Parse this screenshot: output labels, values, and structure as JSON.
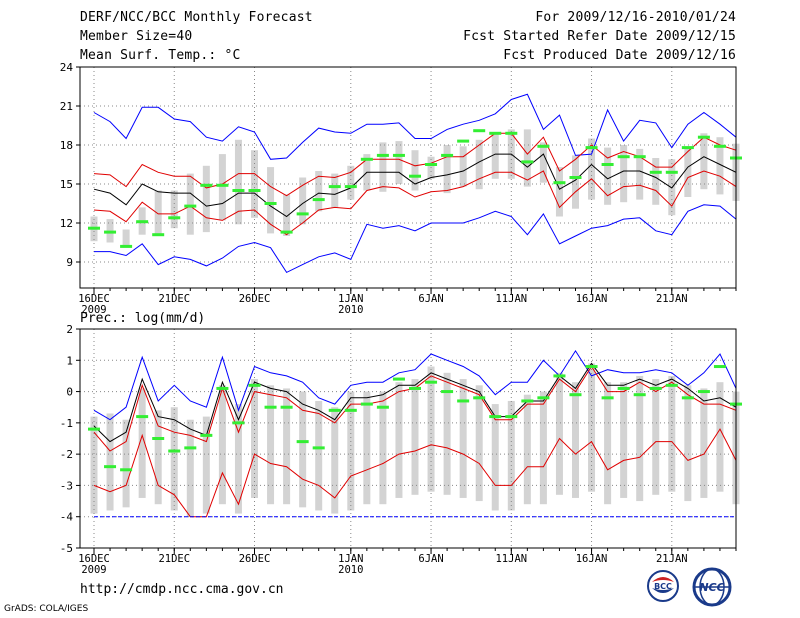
{
  "header": {
    "title": "DERF/NCC/BCC Monthly Forecast",
    "member_size": "Member Size=40",
    "variable": "Mean Surf. Temp.: °C",
    "period": "For 2009/12/16-2010/01/24",
    "start_date": "Fcst Started Refer Date 2009/12/15",
    "produced_date": "Fcst Produced Date 2009/12/16"
  },
  "footer": {
    "url": "http://cmdp.ncc.cma.gov.cn",
    "credit": "GrADS: COLA/IGES",
    "logo_bcc": "BCC",
    "logo_ncc": "NCC"
  },
  "colors": {
    "outer_line": "#0000ff",
    "inner_line": "#e00000",
    "mean_line": "#000000",
    "box": "#d3d3d3",
    "green_marker": "#33ee33",
    "grid": "#888888"
  },
  "chart_data": [
    {
      "type": "box-line",
      "title": "Mean Surf. Temp.: °C",
      "ylim": [
        7,
        24
      ],
      "yticks": [
        9,
        12,
        15,
        18,
        21,
        24
      ],
      "x_tick_labels": [
        {
          "day": 1,
          "label": "16DEC",
          "sub": "2009"
        },
        {
          "day": 6,
          "label": "21DEC",
          "sub": ""
        },
        {
          "day": 11,
          "label": "26DEC",
          "sub": ""
        },
        {
          "day": 17,
          "label": "1JAN",
          "sub": "2010"
        },
        {
          "day": 22,
          "label": "6JAN",
          "sub": ""
        },
        {
          "day": 27,
          "label": "11JAN",
          "sub": ""
        },
        {
          "day": 32,
          "label": "16JAN",
          "sub": ""
        },
        {
          "day": 37,
          "label": "21JAN",
          "sub": ""
        }
      ],
      "days": 40,
      "grid": true,
      "series": [
        {
          "name": "max",
          "color": "blue",
          "values": [
            20.5,
            19.8,
            18.5,
            20.9,
            20.9,
            20.0,
            19.8,
            18.6,
            18.3,
            19.4,
            19.0,
            16.9,
            17.0,
            18.2,
            19.3,
            19.0,
            18.9,
            19.6,
            19.6,
            19.7,
            18.5,
            18.5,
            19.2,
            19.6,
            19.9,
            20.4,
            21.5,
            21.9,
            19.2,
            20.3,
            17.2,
            17.3,
            20.7,
            18.3,
            19.9,
            19.7,
            17.8,
            19.6,
            20.5,
            19.6,
            18.6
          ]
        },
        {
          "name": "p90",
          "color": "red",
          "values": [
            15.8,
            15.7,
            14.8,
            16.5,
            15.9,
            15.6,
            15.6,
            14.7,
            15.0,
            15.8,
            15.8,
            14.8,
            14.1,
            14.9,
            15.6,
            15.5,
            15.9,
            16.9,
            16.9,
            16.9,
            16.4,
            16.6,
            17.1,
            17.1,
            18.0,
            18.9,
            18.9,
            17.3,
            18.6,
            16.0,
            16.9,
            18.0,
            17.0,
            17.5,
            17.1,
            16.3,
            16.3,
            17.5,
            18.6,
            18.0,
            17.6
          ]
        },
        {
          "name": "mean",
          "color": "black",
          "values": [
            14.6,
            14.3,
            13.4,
            15.0,
            14.4,
            14.3,
            14.3,
            13.3,
            13.5,
            14.3,
            14.3,
            13.3,
            12.5,
            13.5,
            14.3,
            14.2,
            14.7,
            15.9,
            15.9,
            15.9,
            15.0,
            15.5,
            15.7,
            16.0,
            16.7,
            17.3,
            17.3,
            16.3,
            17.3,
            14.6,
            15.3,
            16.5,
            15.4,
            16.0,
            16.0,
            15.5,
            14.7,
            16.3,
            17.1,
            16.5,
            15.9
          ]
        },
        {
          "name": "p10",
          "color": "red",
          "values": [
            13.0,
            12.9,
            12.1,
            13.6,
            12.7,
            12.7,
            13.3,
            12.4,
            12.2,
            12.9,
            13.0,
            11.9,
            11.1,
            12.0,
            13.0,
            13.2,
            13.1,
            14.5,
            14.8,
            14.7,
            14.0,
            14.4,
            14.5,
            14.8,
            15.4,
            15.9,
            15.9,
            15.3,
            16.0,
            13.2,
            14.4,
            15.4,
            14.1,
            14.8,
            14.9,
            14.5,
            13.3,
            15.5,
            16.0,
            15.6,
            14.8
          ]
        },
        {
          "name": "min",
          "color": "blue",
          "values": [
            9.8,
            9.8,
            9.5,
            10.4,
            8.8,
            9.4,
            9.2,
            8.7,
            9.3,
            10.2,
            10.5,
            10.1,
            8.2,
            8.8,
            9.4,
            9.7,
            9.2,
            11.9,
            11.6,
            11.8,
            11.4,
            12.0,
            12.0,
            12.0,
            12.4,
            12.9,
            12.5,
            11.1,
            12.7,
            10.4,
            11.0,
            11.6,
            11.8,
            12.3,
            12.4,
            11.4,
            11.1,
            12.9,
            13.4,
            13.3,
            12.3
          ]
        }
      ],
      "boxes": {
        "upper": [
          12.5,
          12.3,
          11.5,
          13.2,
          14.5,
          14.5,
          15.8,
          16.4,
          17.3,
          18.4,
          17.6,
          16.3,
          14.2,
          15.5,
          16.0,
          15.8,
          16.4,
          17.3,
          18.2,
          18.3,
          17.6,
          17.1,
          18.0,
          17.9,
          18.4,
          19.0,
          19.2,
          19.2,
          18.2,
          16.3,
          17.2,
          18.5,
          17.8,
          18.0,
          17.7,
          17.0,
          16.9,
          17.8,
          18.9,
          18.6,
          18.1
        ],
        "lower": [
          10.6,
          10.5,
          10.1,
          11.1,
          11.1,
          11.6,
          11.1,
          11.3,
          12.2,
          11.9,
          12.4,
          11.2,
          11.0,
          11.9,
          12.9,
          13.2,
          13.8,
          14.5,
          14.4,
          15.0,
          14.5,
          15.4,
          14.3,
          14.8,
          14.6,
          15.4,
          15.4,
          14.8,
          15.1,
          12.5,
          13.1,
          13.8,
          13.4,
          13.6,
          13.8,
          13.4,
          12.6,
          14.0,
          14.6,
          14.2,
          13.7
        ]
      },
      "markers": [
        11.6,
        11.3,
        10.2,
        12.1,
        11.1,
        12.4,
        13.3,
        14.9,
        14.9,
        14.5,
        14.5,
        13.5,
        11.3,
        12.7,
        13.8,
        14.8,
        14.8,
        16.9,
        17.2,
        17.2,
        15.6,
        16.5,
        17.2,
        18.3,
        19.1,
        18.9,
        18.9,
        16.7,
        17.9,
        15.1,
        15.5,
        17.8,
        16.5,
        17.1,
        17.1,
        15.9,
        15.9,
        17.8,
        18.6,
        17.9,
        17.0
      ]
    },
    {
      "type": "box-line",
      "title": "Prec.: log(mm/d)",
      "ylim": [
        -5,
        2
      ],
      "yticks": [
        -5,
        -4,
        -3,
        -2,
        -1,
        0,
        1,
        2
      ],
      "x_tick_labels": [
        {
          "day": 1,
          "label": "16DEC",
          "sub": "2009"
        },
        {
          "day": 6,
          "label": "21DEC",
          "sub": ""
        },
        {
          "day": 11,
          "label": "26DEC",
          "sub": ""
        },
        {
          "day": 17,
          "label": "1JAN",
          "sub": "2010"
        },
        {
          "day": 22,
          "label": "6JAN",
          "sub": ""
        },
        {
          "day": 27,
          "label": "11JAN",
          "sub": ""
        },
        {
          "day": 32,
          "label": "16JAN",
          "sub": ""
        },
        {
          "day": 37,
          "label": "21JAN",
          "sub": ""
        }
      ],
      "days": 40,
      "grid": true,
      "series": [
        {
          "name": "max",
          "color": "blue",
          "values": [
            -0.6,
            -0.9,
            -0.5,
            1.1,
            -0.3,
            0.2,
            -0.3,
            -0.5,
            1.1,
            -0.6,
            0.8,
            0.6,
            0.5,
            0.3,
            -0.2,
            -0.4,
            0.2,
            0.3,
            0.3,
            0.6,
            0.7,
            1.2,
            1.0,
            0.8,
            0.5,
            -0.1,
            0.3,
            0.3,
            1.0,
            0.5,
            1.3,
            0.5,
            0.7,
            0.6,
            0.6,
            0.7,
            0.6,
            0.2,
            0.6,
            1.2,
            0.1
          ]
        },
        {
          "name": "mean",
          "color": "black",
          "values": [
            -1.1,
            -1.6,
            -1.3,
            0.4,
            -0.8,
            -0.9,
            -1.2,
            -1.4,
            0.3,
            -0.9,
            0.3,
            0.1,
            0.0,
            -0.4,
            -0.6,
            -0.9,
            -0.2,
            -0.2,
            -0.1,
            0.2,
            0.2,
            0.6,
            0.4,
            0.2,
            0.0,
            -0.8,
            -0.8,
            -0.3,
            -0.3,
            0.5,
            0.1,
            0.9,
            0.2,
            0.2,
            0.4,
            0.2,
            0.4,
            0.1,
            -0.3,
            -0.2,
            -0.5
          ]
        },
        {
          "name": "p75",
          "color": "red",
          "values": [
            -1.3,
            -1.9,
            -1.6,
            0.2,
            -1.1,
            -1.3,
            -1.4,
            -1.6,
            0.1,
            -1.3,
            0.0,
            -0.1,
            -0.2,
            -0.6,
            -0.7,
            -1.0,
            -0.4,
            -0.4,
            -0.3,
            0.0,
            0.1,
            0.5,
            0.3,
            0.1,
            -0.1,
            -0.9,
            -0.9,
            -0.4,
            -0.4,
            0.4,
            0.0,
            0.8,
            0.0,
            0.0,
            0.3,
            0.0,
            0.3,
            -0.1,
            -0.4,
            -0.4,
            -0.6
          ]
        },
        {
          "name": "p25",
          "color": "red",
          "values": [
            -3.0,
            -3.2,
            -3.0,
            -1.4,
            -3.0,
            -3.3,
            -4.0,
            -4.0,
            -2.6,
            -3.6,
            -2.0,
            -2.3,
            -2.4,
            -2.8,
            -3.0,
            -3.4,
            -2.7,
            -2.5,
            -2.3,
            -2.0,
            -1.9,
            -1.7,
            -1.8,
            -2.0,
            -2.3,
            -3.0,
            -3.0,
            -2.4,
            -2.4,
            -1.5,
            -2.0,
            -1.6,
            -2.5,
            -2.2,
            -2.1,
            -1.6,
            -1.6,
            -2.2,
            -2.0,
            -1.2,
            -2.2
          ]
        },
        {
          "name": "min",
          "color": "blue",
          "values": [
            -4.0,
            -4.0,
            -4.0,
            -4.0,
            -4.0,
            -4.0,
            -4.0,
            -4.0,
            -4.0,
            -4.0,
            -4.0,
            -4.0,
            -4.0,
            -4.0,
            -4.0,
            -4.0,
            -4.0,
            -4.0,
            -4.0,
            -4.0,
            -4.0,
            -4.0,
            -4.0,
            -4.0,
            -4.0,
            -4.0,
            -4.0,
            -4.0,
            -4.0,
            -4.0,
            -4.0,
            -4.0,
            -4.0,
            -4.0,
            -4.0,
            -4.0,
            -4.0,
            -4.0,
            -4.0,
            -4.0,
            -4.0
          ]
        }
      ],
      "boxes": {
        "upper": [
          -0.8,
          -0.7,
          -0.9,
          0.1,
          -0.6,
          -0.5,
          -0.9,
          -0.8,
          0.2,
          -0.4,
          0.4,
          0.2,
          0.1,
          0.0,
          -0.3,
          -0.5,
          0.0,
          0.0,
          0.0,
          0.3,
          0.4,
          0.8,
          0.6,
          0.4,
          0.2,
          -0.4,
          -0.3,
          -0.1,
          0.0,
          0.6,
          0.3,
          0.9,
          0.3,
          0.3,
          0.5,
          0.4,
          0.5,
          0.2,
          0.1,
          0.3,
          0.0
        ],
        "lower": [
          -3.9,
          -3.8,
          -3.7,
          -3.4,
          -3.6,
          -3.8,
          -4.0,
          -3.9,
          -3.6,
          -3.9,
          -3.4,
          -3.6,
          -3.6,
          -3.7,
          -3.8,
          -3.9,
          -3.8,
          -3.6,
          -3.6,
          -3.4,
          -3.3,
          -3.2,
          -3.3,
          -3.4,
          -3.5,
          -3.8,
          -3.8,
          -3.6,
          -3.6,
          -3.3,
          -3.4,
          -3.2,
          -3.6,
          -3.4,
          -3.5,
          -3.3,
          -3.2,
          -3.5,
          -3.4,
          -3.2,
          -3.6
        ]
      },
      "markers": [
        -1.2,
        -2.4,
        -2.5,
        -0.8,
        -1.5,
        -1.9,
        -1.8,
        -1.4,
        0.1,
        -1.0,
        0.2,
        -0.5,
        -0.5,
        -1.6,
        -1.8,
        -0.6,
        -0.6,
        -0.4,
        -0.5,
        0.4,
        0.1,
        0.3,
        0.0,
        -0.3,
        -0.2,
        -0.8,
        -0.8,
        -0.3,
        -0.2,
        0.5,
        -0.1,
        0.8,
        -0.2,
        0.1,
        -0.1,
        0.1,
        0.2,
        -0.2,
        0.0,
        0.8,
        -0.4
      ]
    }
  ]
}
